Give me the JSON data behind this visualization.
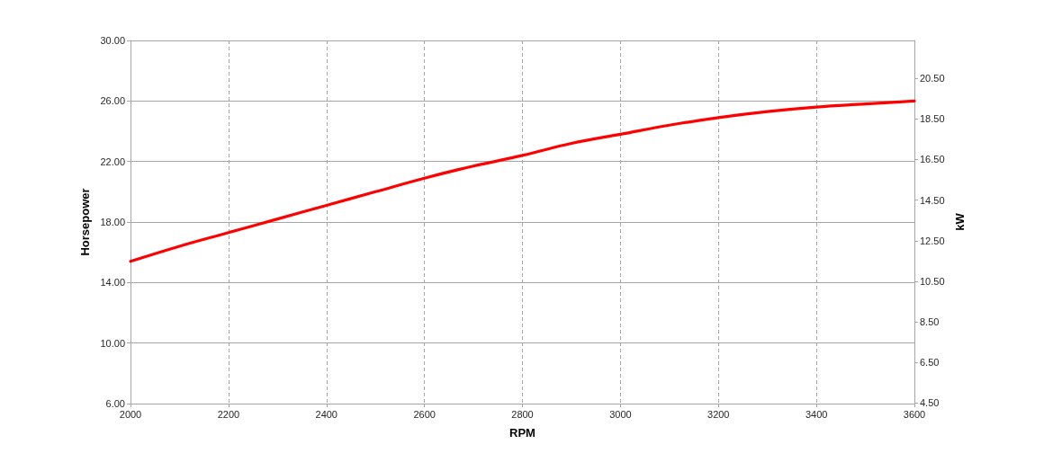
{
  "chart_data": {
    "type": "line",
    "xlabel": "RPM",
    "ylabel": "Horsepower",
    "y2label": "kW",
    "x": [
      2000,
      2100,
      2200,
      2300,
      2400,
      2500,
      2600,
      2700,
      2800,
      2900,
      3000,
      3100,
      3200,
      3300,
      3400,
      3500,
      3600
    ],
    "series": [
      {
        "color": "#ff0000",
        "values": [
          15.4,
          16.4,
          17.3,
          18.2,
          19.1,
          20.0,
          20.9,
          21.7,
          22.4,
          23.2,
          23.8,
          24.4,
          24.9,
          25.3,
          25.6,
          25.8,
          26.0
        ]
      }
    ],
    "xlim": [
      2000,
      3600
    ],
    "xticks": [
      2000,
      2200,
      2400,
      2600,
      2800,
      3000,
      3200,
      3400,
      3600
    ],
    "ylim": [
      6,
      30
    ],
    "yticks": [
      {
        "value": 6,
        "label": "6.00"
      },
      {
        "value": 10,
        "label": "10.00"
      },
      {
        "value": 14,
        "label": "14.00"
      },
      {
        "value": 18,
        "label": "18.00"
      },
      {
        "value": 22,
        "label": "22.00"
      },
      {
        "value": 26,
        "label": "26.00"
      },
      {
        "value": 30,
        "label": "30.00"
      }
    ],
    "y2lim": [
      4.47,
      22.37
    ],
    "y2ticks": [
      {
        "value": 4.5,
        "label": "4.50"
      },
      {
        "value": 6.5,
        "label": "6.50"
      },
      {
        "value": 8.5,
        "label": "8.50"
      },
      {
        "value": 10.5,
        "label": "10.50"
      },
      {
        "value": 12.5,
        "label": "12.50"
      },
      {
        "value": 14.5,
        "label": "14.50"
      },
      {
        "value": 16.5,
        "label": "16.50"
      },
      {
        "value": 18.5,
        "label": "18.50"
      },
      {
        "value": 20.5,
        "label": "20.50"
      }
    ],
    "grid": true,
    "marker": "none",
    "line_style": "solid"
  }
}
